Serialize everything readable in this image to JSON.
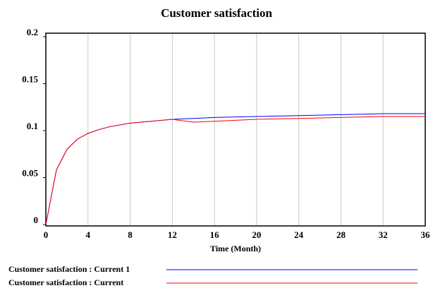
{
  "chart_data": {
    "type": "line",
    "title": "Customer satisfaction",
    "x_label": "Time (Month)",
    "x": [
      0,
      1,
      2,
      3,
      4,
      5,
      6,
      8,
      10,
      12,
      14,
      16,
      20,
      24,
      28,
      32,
      36
    ],
    "series": [
      {
        "name": "Customer satisfaction : Current 1",
        "color": "#0000ff",
        "values": [
          0,
          0.058,
          0.08,
          0.091,
          0.097,
          0.101,
          0.104,
          0.108,
          0.11,
          0.112,
          0.113,
          0.114,
          0.115,
          0.116,
          0.117,
          0.118,
          0.118
        ]
      },
      {
        "name": "Customer satisfaction : Current",
        "color": "#ff0000",
        "values": [
          0,
          0.058,
          0.08,
          0.091,
          0.097,
          0.101,
          0.104,
          0.108,
          0.11,
          0.112,
          0.109,
          0.11,
          0.112,
          0.113,
          0.114,
          0.115,
          0.115
        ]
      }
    ],
    "xlim": [
      0,
      36
    ],
    "xticks": [
      0,
      4,
      8,
      12,
      16,
      20,
      24,
      28,
      32,
      36
    ],
    "ylim": [
      0,
      0.2
    ],
    "yticks": [
      0,
      0.05,
      0.1,
      0.15,
      0.2
    ],
    "grid": true
  }
}
